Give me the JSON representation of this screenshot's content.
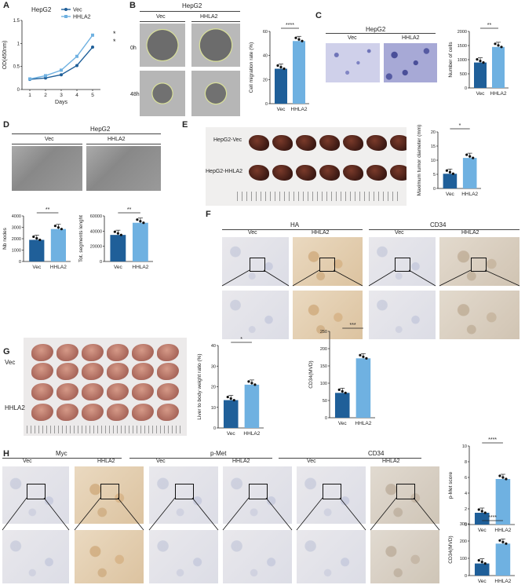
{
  "panels": {
    "A": {
      "label": "A",
      "title": "HepG2",
      "legend": [
        "Vec",
        "HHLA2"
      ],
      "ylabel": "OD(450nm)",
      "xlabel": "Days",
      "sig": [
        "*",
        "*"
      ]
    },
    "B": {
      "label": "B",
      "title": "HepG2",
      "cols": [
        "Vec",
        "HHLA2"
      ],
      "rows": [
        "0h",
        "48h"
      ],
      "ylabel": "Cell migration rate (%)",
      "sig": "****"
    },
    "C": {
      "label": "C",
      "title": "HepG2",
      "cols": [
        "Vec",
        "HHLA2"
      ],
      "ylabel": "Number of cells",
      "sig": "**"
    },
    "D": {
      "label": "D",
      "title": "HepG2",
      "cols": [
        "Vec",
        "HHLA2"
      ],
      "ylabel1": "Nb nodes",
      "ylabel2": "Tot. segments lenght",
      "sig1": "**",
      "sig2": "**"
    },
    "E": {
      "label": "E",
      "rows": [
        "HepG2-Vec",
        "HepG2-HHLA2"
      ],
      "ylabel": "Maximum tumor diameter (mm)",
      "sig": "*"
    },
    "F": {
      "label": "F",
      "groups": [
        "HA",
        "CD34"
      ],
      "cols": [
        "Vec",
        "HHLA2",
        "Vec",
        "HHLA2"
      ]
    },
    "G": {
      "label": "G",
      "rows": [
        "Vec",
        "HHLA2"
      ],
      "ylabel1": "Liver to body weight ratio (%)",
      "ylabel2": "CD34(MVD)",
      "sig1": "*",
      "sig2": "***"
    },
    "H": {
      "label": "H",
      "groups": [
        "Myc",
        "p-Met",
        "CD34"
      ],
      "cols": [
        "Vec",
        "HHLA2",
        "Vec",
        "HHLA2",
        "Vec",
        "HHLA2"
      ],
      "ylabel1": "p-Met score",
      "ylabel2": "CD34(MVD)",
      "sig1": "****",
      "sig2": "****"
    }
  },
  "chart_data": [
    {
      "id": "A",
      "type": "line",
      "title": "HepG2",
      "xlabel": "Days",
      "ylabel": "OD(450nm)",
      "x": [
        1,
        2,
        3,
        4,
        5
      ],
      "ylim": [
        0,
        1.5
      ],
      "yticks": [
        0,
        0.5,
        1.0,
        1.5
      ],
      "series": [
        {
          "name": "Vec",
          "values": [
            0.22,
            0.25,
            0.32,
            0.52,
            0.92
          ],
          "color": "#1f5f99"
        },
        {
          "name": "HHLA2",
          "values": [
            0.23,
            0.3,
            0.42,
            0.72,
            1.18
          ],
          "color": "#6fb1e1"
        }
      ]
    },
    {
      "id": "B",
      "type": "bar",
      "categories": [
        "Vec",
        "HHLA2"
      ],
      "values": [
        29,
        52
      ],
      "ylim": [
        0,
        60
      ],
      "yticks": [
        0,
        20,
        40,
        60
      ],
      "ylabel": "Cell migration rate (%)"
    },
    {
      "id": "C",
      "type": "bar",
      "categories": [
        "Vec",
        "HHLA2"
      ],
      "values": [
        900,
        1450
      ],
      "ylim": [
        0,
        2000
      ],
      "yticks": [
        0,
        500,
        1000,
        1500,
        2000
      ],
      "ylabel": "Number of cells"
    },
    {
      "id": "D1",
      "type": "bar",
      "categories": [
        "Vec",
        "HHLA2"
      ],
      "values": [
        1900,
        2850
      ],
      "ylim": [
        0,
        4000
      ],
      "yticks": [
        0,
        1000,
        2000,
        3000,
        4000
      ],
      "ylabel": "Nb nodes"
    },
    {
      "id": "D2",
      "type": "bar",
      "categories": [
        "Vec",
        "HHLA2"
      ],
      "values": [
        35000,
        51000
      ],
      "ylim": [
        0,
        60000
      ],
      "yticks": [
        0,
        20000,
        40000,
        60000
      ],
      "ylabel": "Tot. segments lenght"
    },
    {
      "id": "E",
      "type": "bar",
      "categories": [
        "Vec",
        "HHLA2"
      ],
      "values": [
        5.2,
        10.8
      ],
      "ylim": [
        0,
        20
      ],
      "yticks": [
        0,
        5,
        10,
        15,
        20
      ],
      "ylabel": "Maximum tumor diameter (mm)"
    },
    {
      "id": "G1",
      "type": "bar",
      "categories": [
        "Vec",
        "HHLA2"
      ],
      "values": [
        13.5,
        21
      ],
      "ylim": [
        0,
        40
      ],
      "yticks": [
        0,
        10,
        20,
        30,
        40
      ],
      "ylabel": "Liver to body weight ratio (%)"
    },
    {
      "id": "G2",
      "type": "bar",
      "categories": [
        "Vec",
        "HHLA2"
      ],
      "values": [
        72,
        172
      ],
      "ylim": [
        0,
        250
      ],
      "yticks": [
        0,
        50,
        100,
        150,
        200,
        250
      ],
      "ylabel": "CD34(MVD)"
    },
    {
      "id": "H1",
      "type": "bar",
      "categories": [
        "Vec",
        "HHLA2"
      ],
      "values": [
        1.5,
        5.8
      ],
      "ylim": [
        0,
        10
      ],
      "yticks": [
        0,
        2,
        4,
        6,
        8,
        10
      ],
      "ylabel": "p-Met score"
    },
    {
      "id": "H2",
      "type": "bar",
      "categories": [
        "Vec",
        "HHLA2"
      ],
      "values": [
        70,
        185
      ],
      "ylim": [
        0,
        300
      ],
      "yticks": [
        0,
        100,
        200,
        300
      ],
      "ylabel": "CD34(MVD)"
    }
  ]
}
